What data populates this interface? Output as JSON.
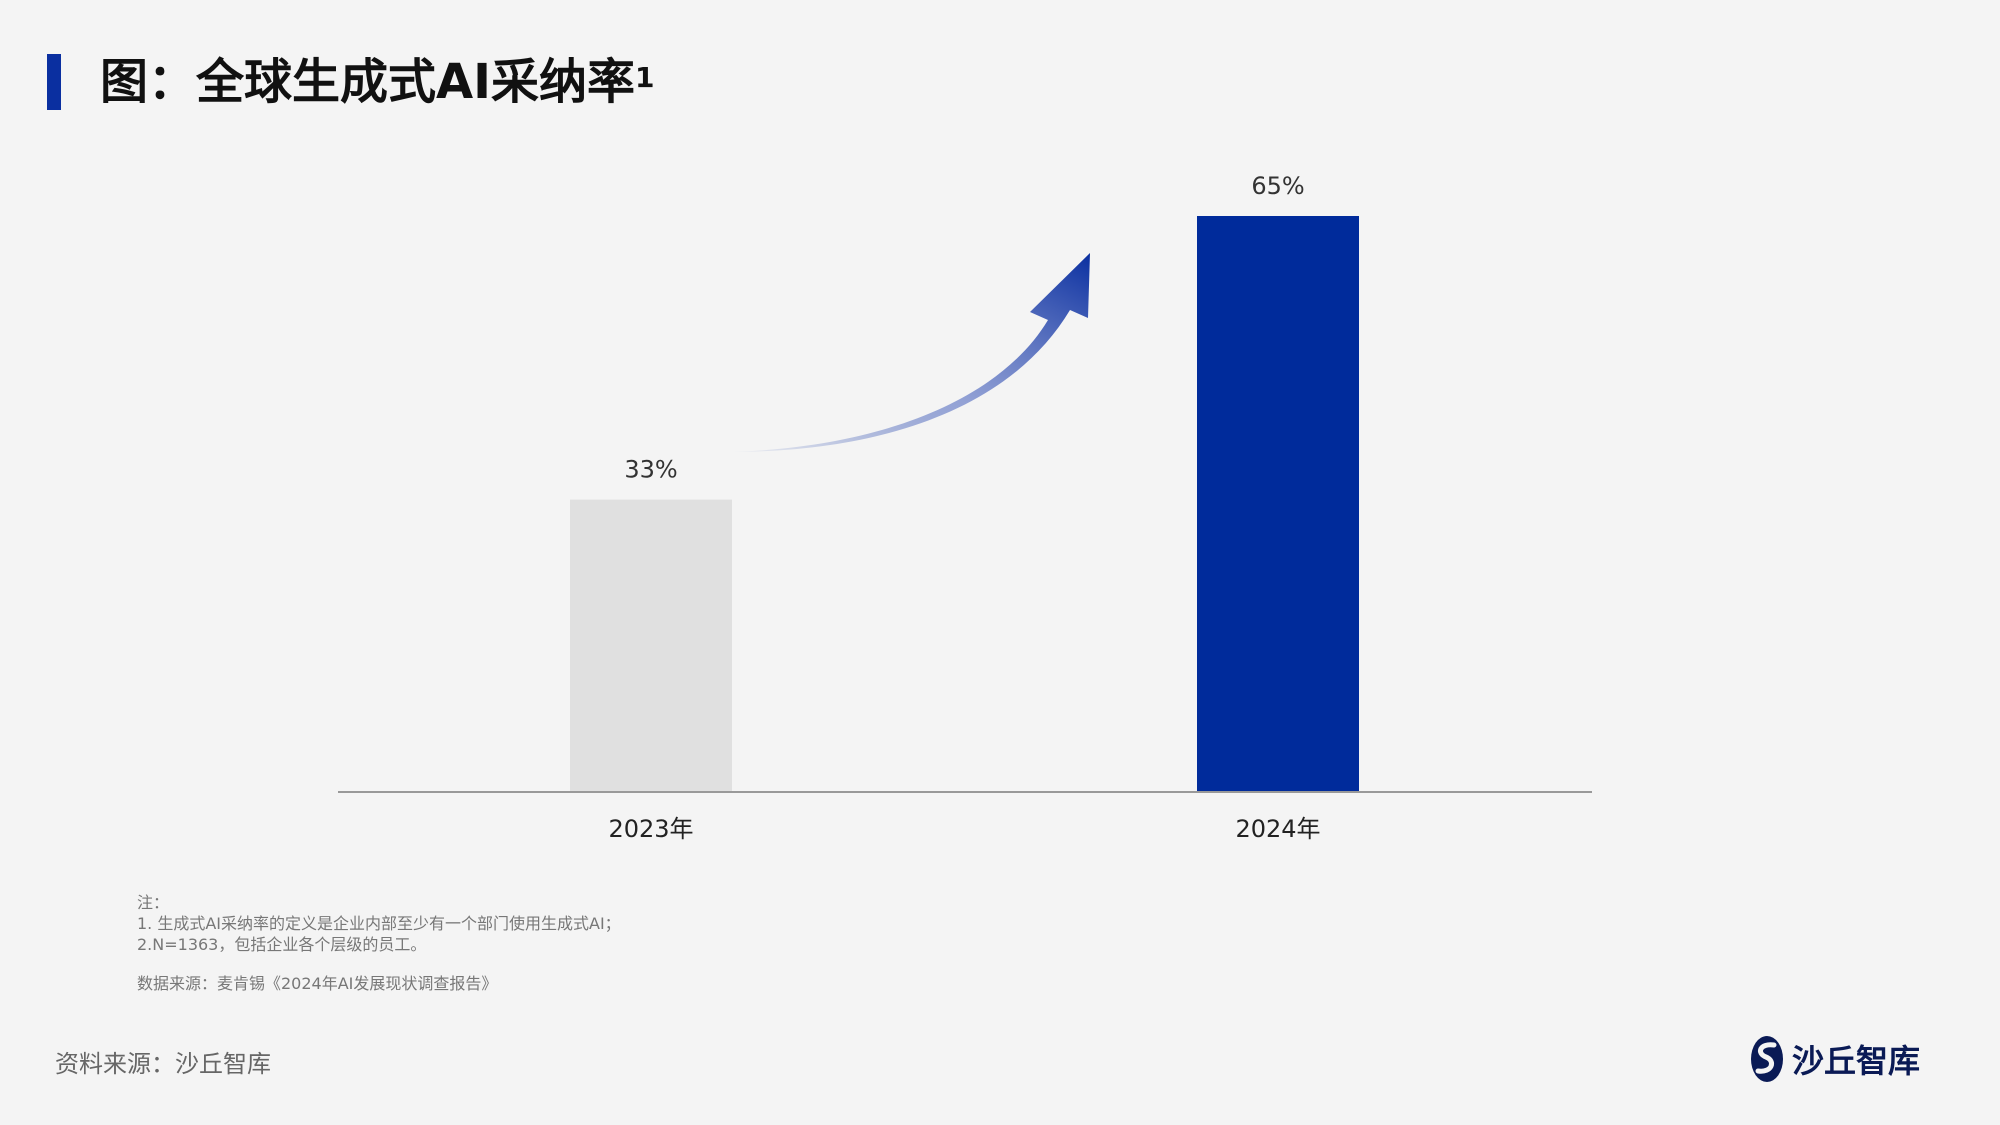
{
  "title": {
    "text": "图：全球生成式AI采纳率",
    "superscript": "1"
  },
  "chart_data": {
    "type": "bar",
    "categories": [
      "2023年",
      "2024年"
    ],
    "values": [
      33,
      65
    ],
    "value_labels": [
      "33%",
      "65%"
    ],
    "ylim": [
      0,
      65
    ],
    "bar_colors": [
      "#e0e0e0",
      "#002b9b"
    ],
    "annotation": "upward-arrow-from-2023-to-2024",
    "grid": false,
    "legend": "none"
  },
  "notes": {
    "header": "注：",
    "line1": "1. 生成式AI采纳率的定义是企业内部至少有一个部门使用生成式AI；",
    "line2": "2.N=1363，包括企业各个层级的员工。",
    "source": "数据来源：麦肯锡《2024年AI发展现状调查报告》"
  },
  "footer": {
    "source": "资料来源：沙丘智库",
    "brand": "沙丘智库"
  },
  "colors": {
    "accent": "#0a2fa0",
    "background": "#f4f4f4"
  }
}
